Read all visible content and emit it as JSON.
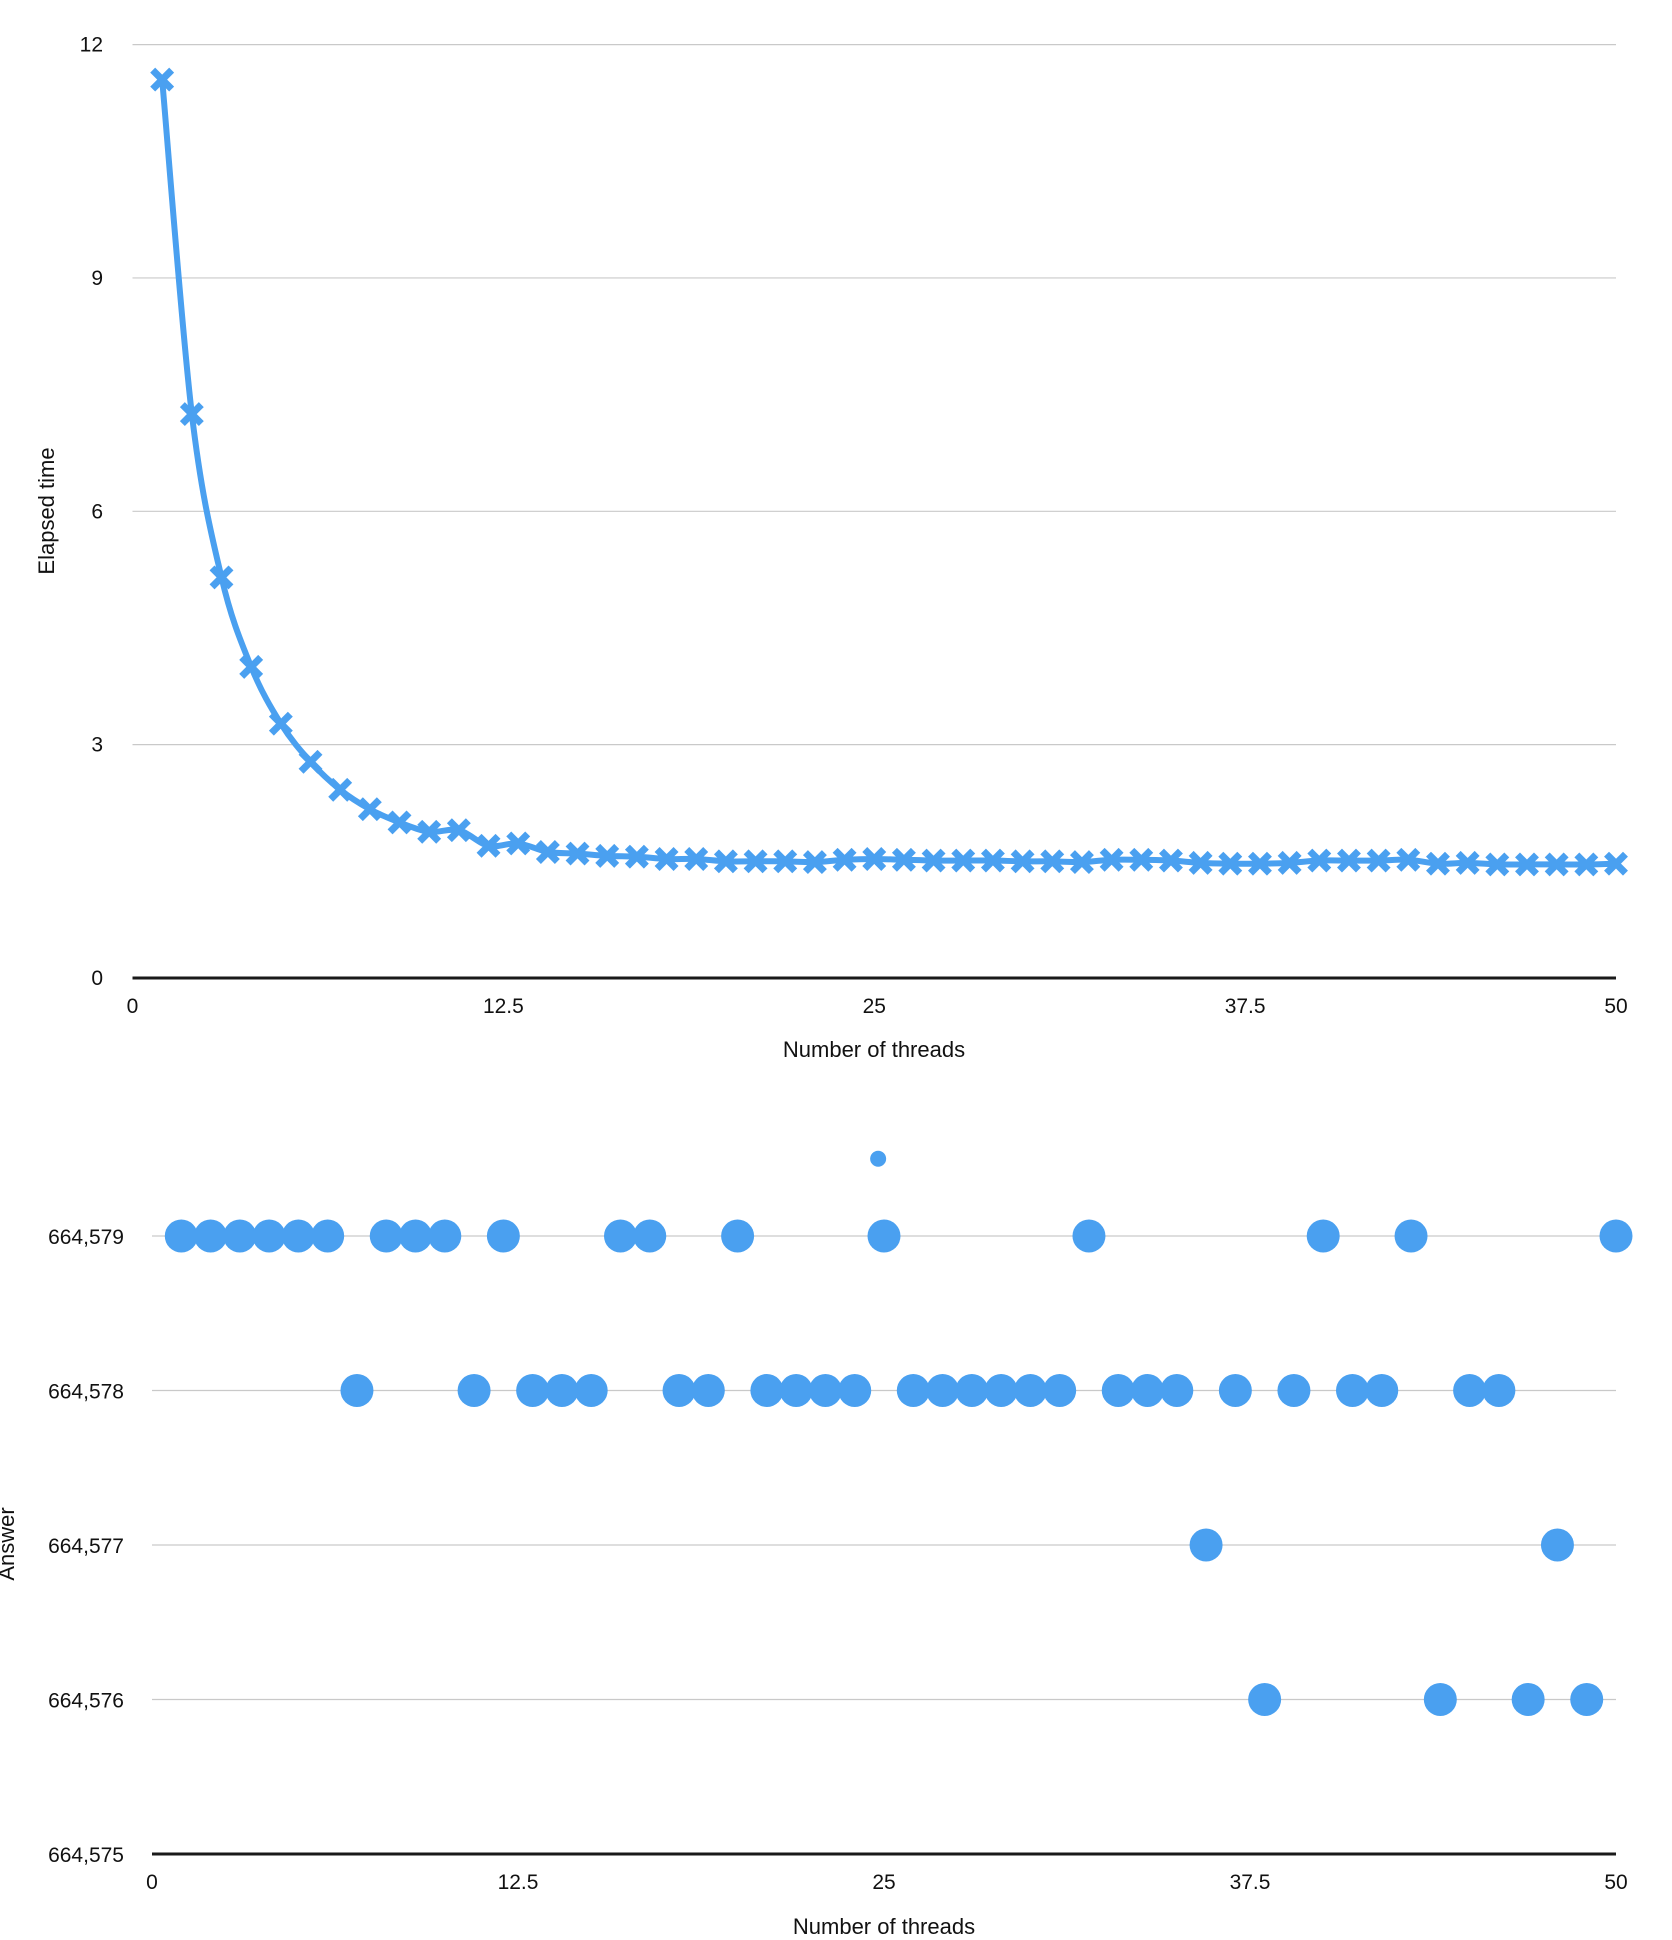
{
  "chart_data": [
    {
      "type": "line",
      "xlabel": "Number of threads",
      "ylabel": "Elapsed time",
      "xlim": [
        0,
        50
      ],
      "ylim": [
        0,
        12
      ],
      "xticks": [
        "0",
        "12.5",
        "25",
        "37.5",
        "50"
      ],
      "yticks": [
        "0",
        "3",
        "6",
        "9",
        "12"
      ],
      "grid": true,
      "smooth": true,
      "marker": "cross",
      "color": "#4aa0f0",
      "x": [
        1,
        2,
        3,
        4,
        5,
        6,
        7,
        8,
        9,
        10,
        11,
        12,
        13,
        14,
        15,
        16,
        17,
        18,
        19,
        20,
        21,
        22,
        23,
        24,
        25,
        26,
        27,
        28,
        29,
        30,
        31,
        32,
        33,
        34,
        35,
        36,
        37,
        38,
        39,
        40,
        41,
        42,
        43,
        44,
        45,
        46,
        47,
        48,
        49,
        50
      ],
      "y": [
        11.55,
        7.25,
        5.15,
        4.0,
        3.27,
        2.78,
        2.42,
        2.17,
        2.0,
        1.88,
        1.9,
        1.7,
        1.73,
        1.62,
        1.6,
        1.57,
        1.56,
        1.53,
        1.53,
        1.5,
        1.5,
        1.5,
        1.49,
        1.52,
        1.53,
        1.52,
        1.51,
        1.51,
        1.51,
        1.5,
        1.5,
        1.49,
        1.52,
        1.52,
        1.51,
        1.48,
        1.47,
        1.47,
        1.48,
        1.51,
        1.51,
        1.51,
        1.52,
        1.47,
        1.48,
        1.46,
        1.46,
        1.46,
        1.46,
        1.47
      ]
    },
    {
      "type": "scatter",
      "xlabel": "Number of threads",
      "ylabel": "Answer",
      "xlim": [
        0,
        50
      ],
      "ylim": [
        664575,
        664579.5
      ],
      "xticks": [
        "0",
        "12.5",
        "25",
        "37.5",
        "50"
      ],
      "yticks": [
        "664,575",
        "664,576",
        "664,577",
        "664,578",
        "664,579"
      ],
      "grid": true,
      "color": "#4aa0f0",
      "x": [
        1,
        2,
        3,
        4,
        5,
        6,
        7,
        8,
        9,
        10,
        11,
        12,
        13,
        14,
        15,
        16,
        17,
        18,
        19,
        20,
        21,
        22,
        23,
        24,
        25,
        26,
        27,
        28,
        29,
        30,
        31,
        32,
        33,
        34,
        35,
        36,
        37,
        38,
        39,
        40,
        41,
        42,
        43,
        44,
        45,
        46,
        47,
        48,
        49,
        50
      ],
      "y": [
        664579,
        664579,
        664579,
        664579,
        664579,
        664579,
        664578,
        664579,
        664579,
        664579,
        664578,
        664579,
        664578,
        664578,
        664578,
        664579,
        664579,
        664578,
        664578,
        664579,
        664578,
        664578,
        664578,
        664578,
        664579,
        664578,
        664578,
        664578,
        664578,
        664578,
        664578,
        664579,
        664578,
        664578,
        664578,
        664577,
        664578,
        664576,
        664578,
        664579,
        664578,
        664578,
        664579,
        664576,
        664578,
        664578,
        664576,
        664577,
        664576,
        664579
      ],
      "small_points": [
        {
          "x": 24.8,
          "y": 664579.5
        }
      ]
    }
  ]
}
